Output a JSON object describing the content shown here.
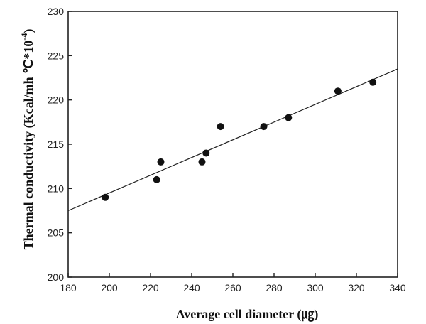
{
  "chart_data": {
    "type": "scatter",
    "title": "",
    "xlabel": "Average cell diameter (㎍)",
    "ylabel": "Thermal conductivity (Kcal/mh ℃*10",
    "ylabel_exponent": "-4",
    "ylabel_close": ")",
    "xlim": [
      180,
      340
    ],
    "ylim": [
      200,
      230
    ],
    "xticks": [
      180,
      200,
      220,
      240,
      260,
      280,
      300,
      320,
      340
    ],
    "yticks": [
      200,
      205,
      210,
      215,
      220,
      225,
      230
    ],
    "grid": false,
    "series": [
      {
        "points": [
          {
            "x": 198,
            "y": 209
          },
          {
            "x": 223,
            "y": 211
          },
          {
            "x": 225,
            "y": 213
          },
          {
            "x": 245,
            "y": 213
          },
          {
            "x": 247,
            "y": 214
          },
          {
            "x": 254,
            "y": 217
          },
          {
            "x": 275,
            "y": 217
          },
          {
            "x": 287,
            "y": 218
          },
          {
            "x": 311,
            "y": 221
          },
          {
            "x": 328,
            "y": 222
          }
        ]
      }
    ],
    "trendline": {
      "type": "linear",
      "x": [
        180,
        340
      ],
      "y": [
        207.5,
        223.5
      ]
    }
  }
}
